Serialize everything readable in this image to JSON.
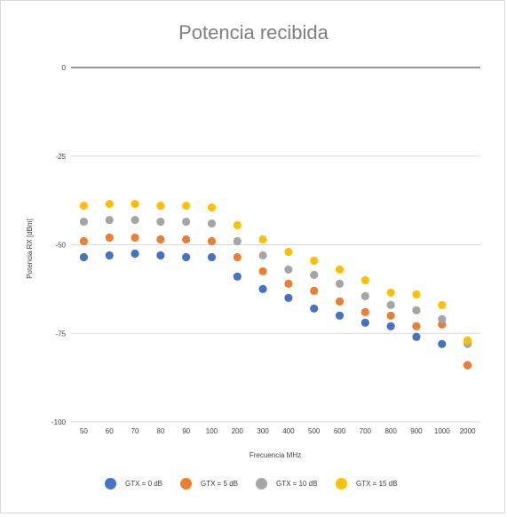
{
  "chart_data": {
    "type": "scatter",
    "title": "Potencia recibida",
    "xlabel": "Frecuencia MHz",
    "ylabel": "Potencia RX [dBm]",
    "categories": [
      "50",
      "60",
      "70",
      "80",
      "90",
      "100",
      "200",
      "300",
      "400",
      "500",
      "600",
      "700",
      "800",
      "900",
      "1000",
      "2000"
    ],
    "ylim": [
      -100,
      0
    ],
    "yticks": [
      0,
      -25,
      -50,
      -75,
      -100
    ],
    "grid": true,
    "legend_position": "bottom",
    "series": [
      {
        "name": "GTX = 0 dB",
        "color": "#4472C4",
        "values": [
          -53.5,
          -53,
          -52.5,
          -53,
          -53.5,
          -53.5,
          -59,
          -62.5,
          -65,
          -68,
          -70,
          -72,
          -73,
          -76,
          -78,
          -84
        ]
      },
      {
        "name": "GTX = 5 dB",
        "color": "#ED7D31",
        "values": [
          -49,
          -48,
          -48,
          -48.5,
          -48.5,
          -49,
          -53.5,
          -57.5,
          -61,
          -63,
          -66,
          -69,
          -70,
          -73,
          -72.5,
          -84
        ]
      },
      {
        "name": "GTX = 10 dB",
        "color": "#A5A5A5",
        "values": [
          -43.5,
          -43,
          -43,
          -43.5,
          -43.5,
          -44,
          -49,
          -53,
          -57,
          -58.5,
          -61,
          -64.5,
          -67,
          -68.5,
          -71,
          -78
        ]
      },
      {
        "name": "GTX = 15 dB",
        "color": "#FFC000",
        "values": [
          -39,
          -38.5,
          -38.5,
          -39,
          -39,
          -39.5,
          -44.5,
          -48.5,
          -52,
          -54.5,
          -57,
          -60,
          -63.5,
          -64,
          -67,
          -77
        ]
      }
    ]
  }
}
